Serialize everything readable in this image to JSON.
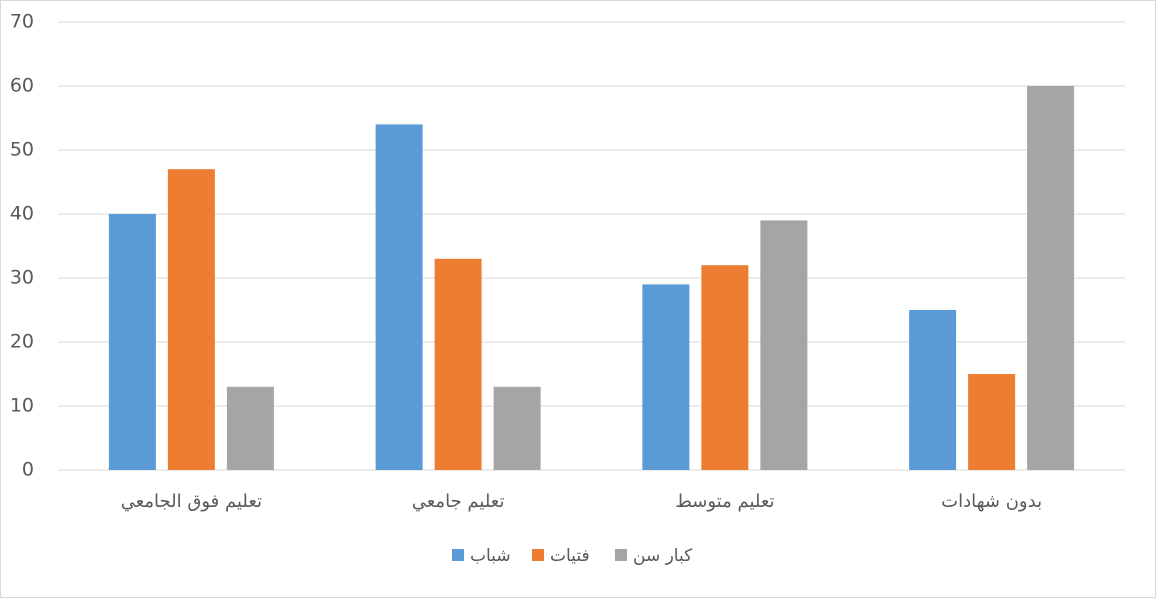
{
  "chart_data": {
    "type": "bar",
    "categories": [
      "تعليم فوق الجامعي",
      "تعليم جامعي",
      "تعليم متوسط",
      "بدون شهادات"
    ],
    "series": [
      {
        "name": "شباب",
        "color": "#5b9bd5",
        "values": [
          40,
          54,
          29,
          25
        ]
      },
      {
        "name": "فتيات",
        "color": "#ed7d31",
        "values": [
          47,
          33,
          32,
          15
        ]
      },
      {
        "name": "كبار سن",
        "color": "#a5a5a5",
        "values": [
          13,
          13,
          39,
          60
        ]
      }
    ],
    "ylim": [
      0,
      70
    ],
    "yticks": [
      0,
      10,
      20,
      30,
      40,
      50,
      60,
      70
    ],
    "grid": true,
    "legend": "bottom"
  }
}
